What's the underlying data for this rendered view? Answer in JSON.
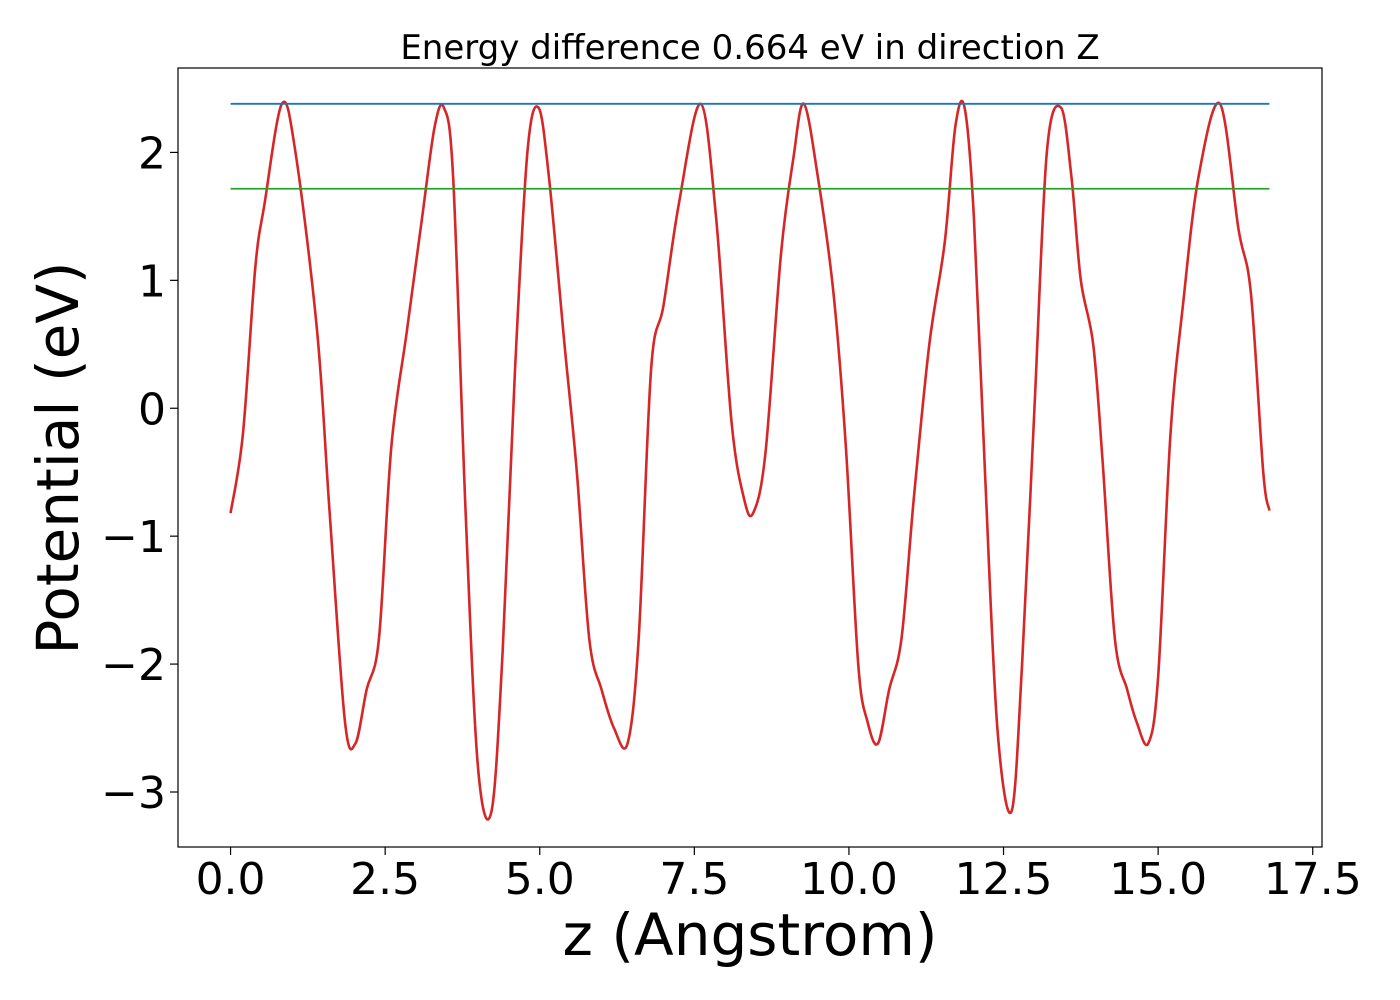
{
  "chart_data": {
    "type": "line",
    "title": "Energy difference 0.664 eV in direction Z",
    "xlabel": "z (Angstrom)",
    "ylabel": "Potential (eV)",
    "xlim": [
      -0.85,
      17.65
    ],
    "ylim": [
      -3.43,
      2.66
    ],
    "xticks": [
      0.0,
      2.5,
      5.0,
      7.5,
      10.0,
      12.5,
      15.0,
      17.5
    ],
    "xtick_labels": [
      "0.0",
      "2.5",
      "5.0",
      "7.5",
      "10.0",
      "12.5",
      "15.0",
      "17.5"
    ],
    "yticks": [
      -3,
      -2,
      -1,
      0,
      1,
      2
    ],
    "ytick_labels": [
      "−3",
      "−2",
      "−1",
      "0",
      "1",
      "2"
    ],
    "grid": false,
    "series": [
      {
        "color": "#d62728",
        "x": [
          0.0,
          0.2,
          0.4,
          0.55,
          0.83,
          1.05,
          1.4,
          1.6,
          1.85,
          2.02,
          2.2,
          2.4,
          2.6,
          2.85,
          3.1,
          3.3,
          3.45,
          3.6,
          3.8,
          4.0,
          4.22,
          4.4,
          4.6,
          4.8,
          4.98,
          5.15,
          5.4,
          5.6,
          5.8,
          6.0,
          6.2,
          6.42,
          6.6,
          6.8,
          7.0,
          7.25,
          7.6,
          7.85,
          8.1,
          8.3,
          8.45,
          8.65,
          8.9,
          9.1,
          9.27,
          9.5,
          9.75,
          9.95,
          10.15,
          10.3,
          10.47,
          10.65,
          10.85,
          11.05,
          11.3,
          11.55,
          11.72,
          11.87,
          12.02,
          12.2,
          12.4,
          12.63,
          12.8,
          13.0,
          13.2,
          13.43,
          13.6,
          13.75,
          13.95,
          14.1,
          14.3,
          14.5,
          14.65,
          14.84,
          15.0,
          15.2,
          15.4,
          15.65,
          16.0,
          16.3,
          16.5,
          16.7,
          16.8
        ],
        "y": [
          -0.82,
          -0.2,
          1.1,
          1.6,
          2.38,
          2.0,
          0.6,
          -0.8,
          -2.45,
          -2.62,
          -2.2,
          -1.8,
          -0.3,
          0.6,
          1.5,
          2.2,
          2.35,
          1.8,
          -0.8,
          -2.8,
          -3.15,
          -1.9,
          0.3,
          2.0,
          2.35,
          1.8,
          0.5,
          -0.5,
          -1.8,
          -2.2,
          -2.5,
          -2.62,
          -1.8,
          0.3,
          0.8,
          1.6,
          2.38,
          1.5,
          -0.1,
          -0.7,
          -0.82,
          -0.35,
          1.2,
          1.95,
          2.38,
          1.8,
          0.9,
          -0.3,
          -2.0,
          -2.45,
          -2.62,
          -2.2,
          -1.8,
          -0.7,
          0.5,
          1.3,
          2.2,
          2.35,
          1.5,
          -0.5,
          -2.5,
          -3.15,
          -2.0,
          0.0,
          2.0,
          2.35,
          1.8,
          1.0,
          0.5,
          -0.4,
          -1.8,
          -2.2,
          -2.45,
          -2.62,
          -2.1,
          -0.2,
          0.8,
          1.8,
          2.38,
          1.4,
          0.9,
          -0.5,
          -0.8
        ]
      },
      {
        "color": "#1f77b4",
        "x": [
          0.0,
          16.8
        ],
        "y": [
          2.38,
          2.38
        ]
      },
      {
        "color": "#2ca02c",
        "x": [
          0.0,
          16.8
        ],
        "y": [
          1.716,
          1.716
        ]
      }
    ]
  }
}
